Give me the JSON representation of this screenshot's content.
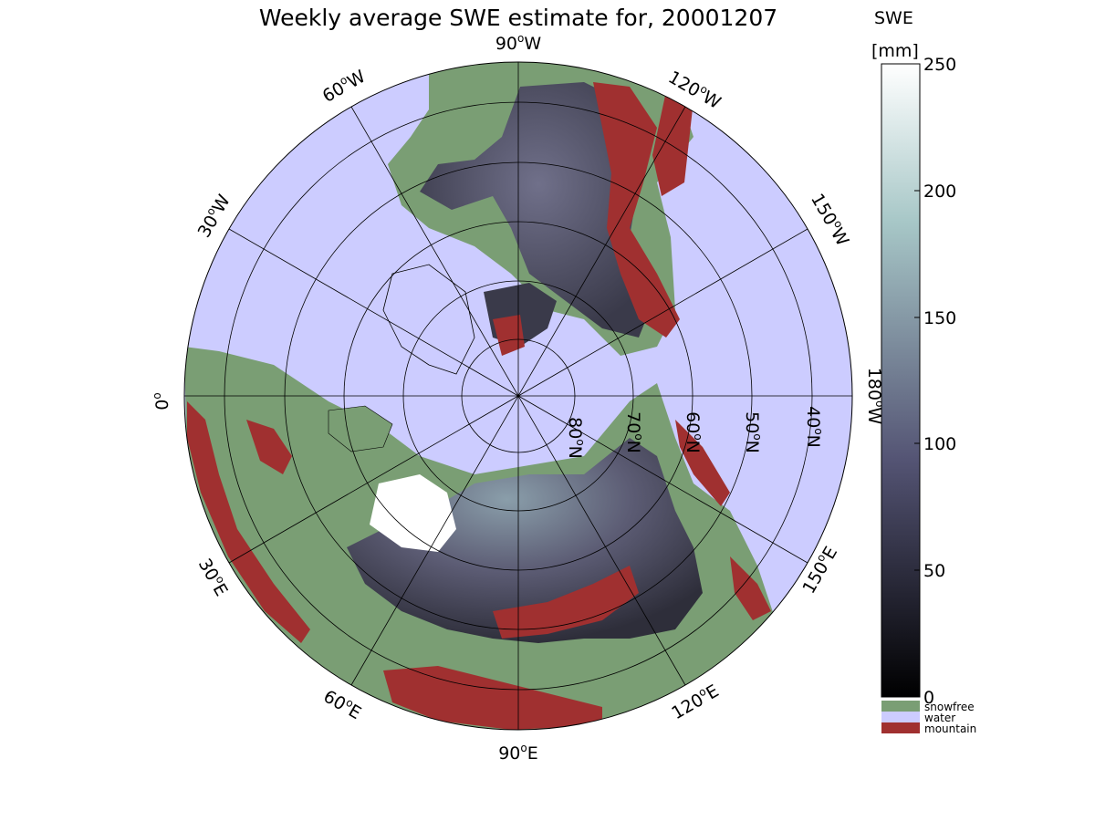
{
  "title": "Weekly average SWE estimate for, 20001207",
  "map": {
    "projection": "north-polar-stereographic",
    "longitude_labels": [
      {
        "deg": "90",
        "hemi": "W"
      },
      {
        "deg": "60",
        "hemi": "W"
      },
      {
        "deg": "30",
        "hemi": "W"
      },
      {
        "deg": "0",
        "hemi": ""
      },
      {
        "deg": "120",
        "hemi": "W"
      },
      {
        "deg": "150",
        "hemi": "W"
      },
      {
        "deg": "180",
        "hemi": "W"
      },
      {
        "deg": "150",
        "hemi": "E"
      },
      {
        "deg": "120",
        "hemi": "E"
      },
      {
        "deg": "90",
        "hemi": "E"
      },
      {
        "deg": "60",
        "hemi": "E"
      },
      {
        "deg": "30",
        "hemi": "E"
      }
    ],
    "latitude_labels": [
      {
        "deg": "80",
        "hemi": "N"
      },
      {
        "deg": "70",
        "hemi": "N"
      },
      {
        "deg": "60",
        "hemi": "N"
      },
      {
        "deg": "50",
        "hemi": "N"
      },
      {
        "deg": "40",
        "hemi": "N"
      }
    ],
    "colors": {
      "water": "#ccccff",
      "snowfree": "#7a9e74",
      "mountain": "#a03030",
      "grid": "#000000"
    }
  },
  "colorbar": {
    "label_line1": "SWE",
    "label_line2": "[mm]",
    "ticks": [
      "0",
      "50",
      "100",
      "150",
      "200",
      "250"
    ],
    "range": [
      0,
      250
    ],
    "colormap": "bone",
    "legend": [
      {
        "label": "snowfree",
        "color": "#7a9e74"
      },
      {
        "label": "water",
        "color": "#ccccff"
      },
      {
        "label": "mountain",
        "color": "#a03030"
      }
    ]
  }
}
